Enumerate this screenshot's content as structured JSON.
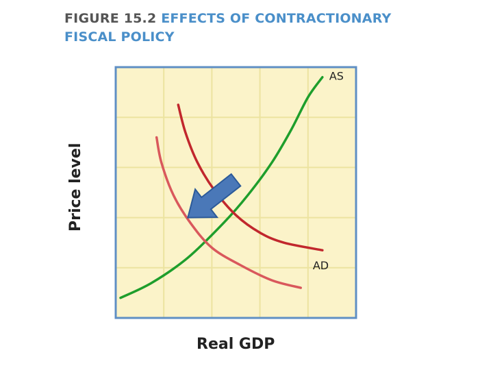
{
  "figure": {
    "number": "FIGURE 15.2",
    "title_line1": "EFFECTS OF CONTRACTIONARY",
    "title_line2": "FISCAL POLICY"
  },
  "colors": {
    "plot_background": "#fbf3c9",
    "plot_border": "#5f8fc4",
    "grid": "#ece3a0",
    "as_curve": "#1e9e2c",
    "ad_original": "#c1272d",
    "ad_shifted": "#d9585c",
    "arrow_fill": "#4a78b8",
    "arrow_stroke": "#2c5a99"
  },
  "chart_data": {
    "type": "line",
    "title": "EFFECTS OF CONTRACTIONARY FISCAL POLICY",
    "xlabel": "Real GDP",
    "ylabel": "Price level",
    "xlim": [
      0,
      10
    ],
    "ylim": [
      0,
      10
    ],
    "grid": true,
    "grid_divisions": 5,
    "tick_labels": false,
    "series": [
      {
        "name": "AS",
        "label_visible": true,
        "color": "#1e9e2c",
        "x": [
          0.2,
          1.5,
          3.0,
          4.5,
          5.5,
          6.5,
          7.3,
          8.0,
          8.6
        ],
        "y": [
          0.8,
          1.4,
          2.4,
          3.8,
          4.9,
          6.2,
          7.5,
          8.8,
          9.6
        ]
      },
      {
        "name": "AD",
        "label_visible": true,
        "color": "#c1272d",
        "x": [
          2.6,
          2.9,
          3.4,
          4.1,
          5.0,
          6.0,
          7.0,
          8.6
        ],
        "y": [
          8.5,
          7.4,
          6.2,
          5.1,
          4.1,
          3.4,
          3.0,
          2.7
        ]
      },
      {
        "name": "AD2",
        "label_visible": false,
        "color": "#d9585c",
        "x": [
          1.7,
          1.9,
          2.4,
          3.1,
          4.0,
          5.2,
          6.5,
          7.7
        ],
        "y": [
          7.2,
          6.2,
          4.9,
          3.8,
          2.8,
          2.1,
          1.5,
          1.2
        ]
      }
    ],
    "annotations": [
      {
        "type": "arrow",
        "meaning": "leftward shift of aggregate demand",
        "from": [
          5.0,
          5.5
        ],
        "to": [
          3.0,
          4.0
        ]
      }
    ]
  }
}
